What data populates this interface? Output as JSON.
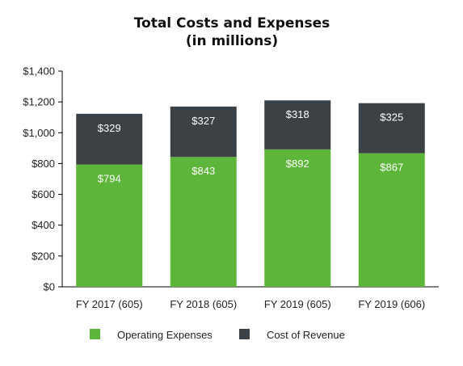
{
  "chart_data": {
    "type": "bar",
    "stacked": true,
    "title": "Total Costs and Expenses",
    "subtitle": "(in millions)",
    "categories": [
      "FY 2017 (605)",
      "FY 2018 (605)",
      "FY 2019 (605)",
      "FY 2019 (606)"
    ],
    "series": [
      {
        "name": "Operating Expenses",
        "values": [
          794,
          843,
          892,
          867
        ],
        "labels": [
          "$794",
          "$843",
          "$892",
          "$867"
        ],
        "color": "#5db53a"
      },
      {
        "name": "Cost of Revenue",
        "values": [
          329,
          327,
          318,
          325
        ],
        "labels": [
          "$329",
          "$327",
          "$318",
          "$325"
        ],
        "color": "#3b4145"
      }
    ],
    "ylim": [
      0,
      1400
    ],
    "yticks": [
      0,
      200,
      400,
      600,
      800,
      1000,
      1200,
      1400
    ],
    "ytick_labels": [
      "$0",
      "$200",
      "$400",
      "$600",
      "$800",
      "$1,000",
      "$1,200",
      "$1,400"
    ],
    "grid": false,
    "legend_position": "bottom"
  }
}
